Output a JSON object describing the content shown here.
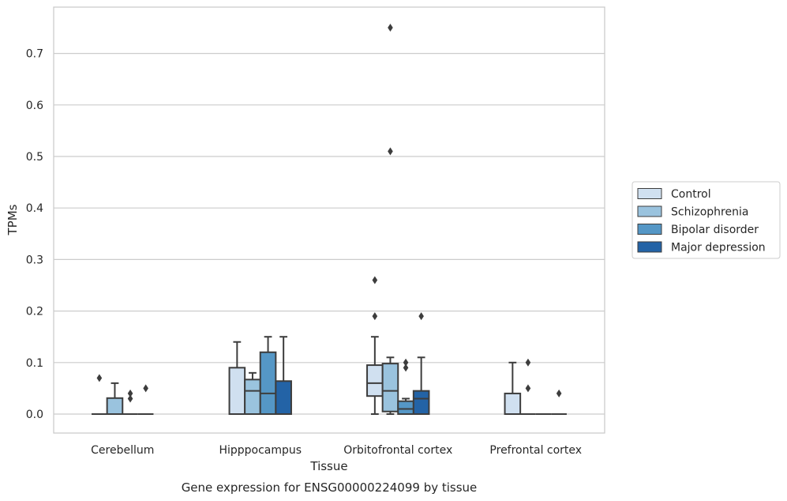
{
  "chart_data": {
    "type": "box",
    "xlabel": "Tissue",
    "ylabel": "TPMs",
    "caption": "Gene expression for ENSG00000224099 by tissue",
    "ylim": [
      -0.036,
      0.79
    ],
    "yticks": [
      "0.0",
      "0.1",
      "0.2",
      "0.3",
      "0.4",
      "0.5",
      "0.6",
      "0.7"
    ],
    "grid": "horizontal",
    "legend_position": "right",
    "categories": [
      "Cerebellum",
      "Hipppocampus",
      "Orbitofrontal cortex",
      "Prefrontal cortex"
    ],
    "series": [
      {
        "name": "Control",
        "color": "#d0e0f0",
        "boxes": [
          {
            "q1": 0,
            "median": 0,
            "q3": 0,
            "wlow": 0,
            "whigh": 0,
            "outliers": [
              0.07
            ]
          },
          {
            "q1": 0,
            "median": 0,
            "q3": 0.09,
            "wlow": 0,
            "whigh": 0.14,
            "outliers": []
          },
          {
            "q1": 0.035,
            "median": 0.06,
            "q3": 0.095,
            "wlow": 0,
            "whigh": 0.15,
            "outliers": [
              0.19,
              0.26
            ]
          },
          {
            "q1": 0,
            "median": 0,
            "q3": 0.04,
            "wlow": 0,
            "whigh": 0.1,
            "outliers": []
          }
        ]
      },
      {
        "name": "Schizophrenia",
        "color": "#9ac3de",
        "boxes": [
          {
            "q1": 0,
            "median": 0,
            "q3": 0.031,
            "wlow": 0,
            "whigh": 0.06,
            "outliers": []
          },
          {
            "q1": 0,
            "median": 0.045,
            "q3": 0.067,
            "wlow": 0,
            "whigh": 0.08,
            "outliers": []
          },
          {
            "q1": 0.005,
            "median": 0.045,
            "q3": 0.098,
            "wlow": 0,
            "whigh": 0.11,
            "outliers": [
              0.51,
              0.75
            ]
          },
          {
            "q1": 0,
            "median": 0,
            "q3": 0,
            "wlow": 0,
            "whigh": 0,
            "outliers": [
              0.05,
              0.1
            ]
          }
        ]
      },
      {
        "name": "Bipolar disorder",
        "color": "#5597c6",
        "boxes": [
          {
            "q1": 0,
            "median": 0,
            "q3": 0,
            "wlow": 0,
            "whigh": 0,
            "outliers": [
              0.03,
              0.04
            ]
          },
          {
            "q1": 0,
            "median": 0.04,
            "q3": 0.12,
            "wlow": 0,
            "whigh": 0.15,
            "outliers": []
          },
          {
            "q1": 0,
            "median": 0.01,
            "q3": 0.025,
            "wlow": 0,
            "whigh": 0.03,
            "outliers": [
              0.09,
              0.1
            ]
          },
          {
            "q1": 0,
            "median": 0,
            "q3": 0,
            "wlow": 0,
            "whigh": 0,
            "outliers": []
          }
        ]
      },
      {
        "name": "Major depression",
        "color": "#2363a6",
        "boxes": [
          {
            "q1": 0,
            "median": 0,
            "q3": 0,
            "wlow": 0,
            "whigh": 0,
            "outliers": [
              0.05
            ]
          },
          {
            "q1": 0,
            "median": 0,
            "q3": 0.064,
            "wlow": 0,
            "whigh": 0.15,
            "outliers": []
          },
          {
            "q1": 0,
            "median": 0.03,
            "q3": 0.045,
            "wlow": 0,
            "whigh": 0.11,
            "outliers": [
              0.19
            ]
          },
          {
            "q1": 0,
            "median": 0,
            "q3": 0,
            "wlow": 0,
            "whigh": 0,
            "outliers": [
              0.04
            ]
          }
        ]
      }
    ]
  }
}
